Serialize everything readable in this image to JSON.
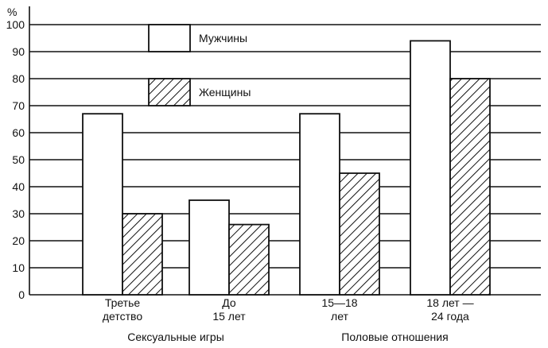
{
  "chart_data": {
    "type": "bar",
    "y_unit": "%",
    "ylim": [
      0,
      100
    ],
    "yticks": [
      0,
      10,
      20,
      30,
      40,
      50,
      60,
      70,
      80,
      90,
      100
    ],
    "grid": true,
    "legend_position": "top-center",
    "categories": [
      [
        "Третье",
        "детство"
      ],
      [
        "До",
        "15 лет"
      ],
      [
        "15—18",
        "лет"
      ],
      [
        "18 лет —",
        "24 года"
      ]
    ],
    "groups": [
      {
        "label": "Сексуальные игры",
        "categories": [
          0,
          1
        ]
      },
      {
        "label": "Половые отношения",
        "categories": [
          2,
          3
        ]
      }
    ],
    "series": [
      {
        "name": "Мужчины",
        "pattern": "plain",
        "values": [
          67,
          35,
          67,
          94
        ]
      },
      {
        "name": "Женщины",
        "pattern": "hatched",
        "values": [
          30,
          26,
          45,
          80
        ]
      }
    ]
  }
}
